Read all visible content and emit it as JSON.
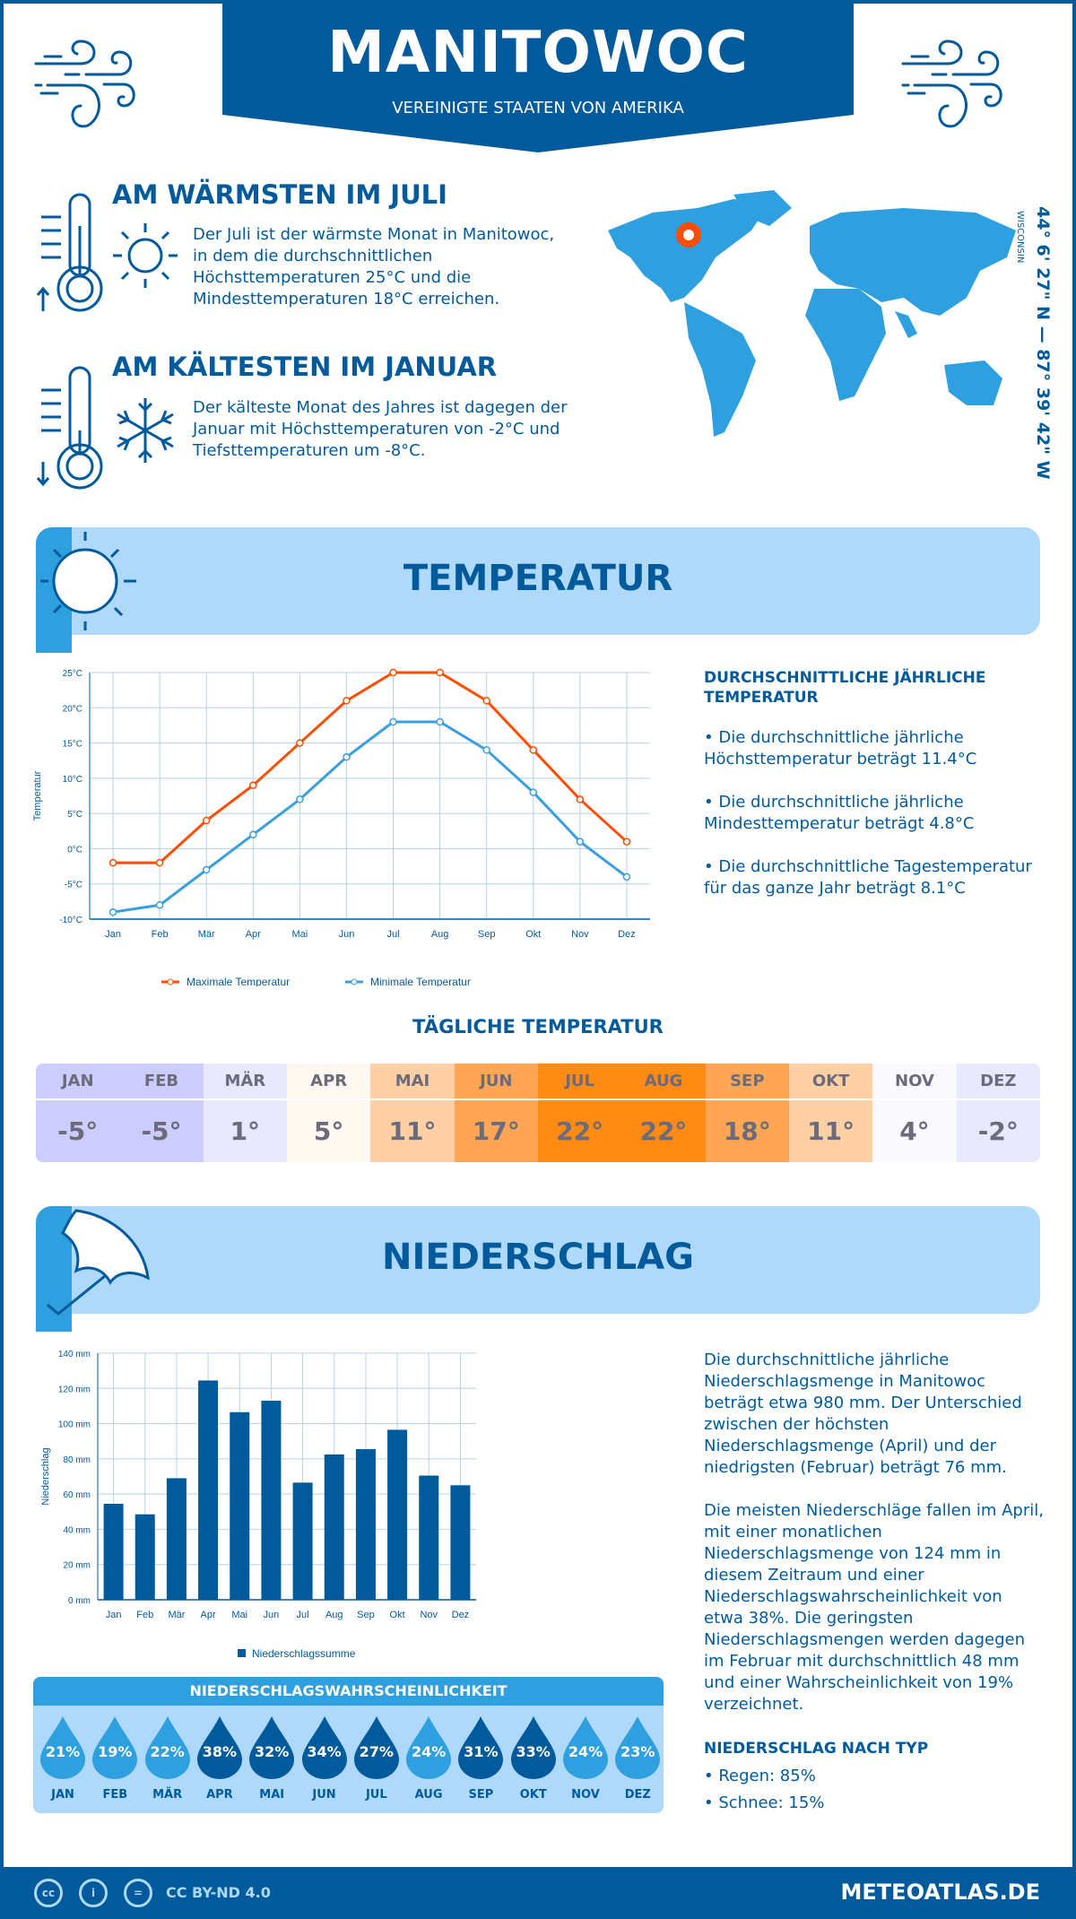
{
  "header": {
    "title": "MANITOWOC",
    "subtitle": "VEREINIGTE STAATEN VON AMERIKA"
  },
  "warm": {
    "heading": "AM WÄRMSTEN IM JULI",
    "text": "Der Juli ist der wärmste Monat in Manitowoc, in dem die durchschnittlichen Höchsttemperaturen 25°C und die Mindesttemperaturen 18°C erreichen."
  },
  "cold": {
    "heading": "AM KÄLTESTEN IM JANUAR",
    "text": "Der kälteste Monat des Jahres ist dagegen der Januar mit Höchsttemperaturen von -2°C und Tiefsttemperaturen um -8°C."
  },
  "location": {
    "coords": "44° 6' 27\" N — 87° 39' 42\" W",
    "region": "WISCONSIN"
  },
  "temp_section": {
    "title": "TEMPERATUR",
    "right_heading": "DURCHSCHNITTLICHE JÄHRLICHE TEMPERATUR",
    "bullets": [
      "• Die durchschnittliche jährliche Höchsttemperatur beträgt 11.4°C",
      "• Die durchschnittliche jährliche Mindesttemperatur beträgt 4.8°C",
      "• Die durchschnittliche Tagestemperatur für das ganze Jahr beträgt 8.1°C"
    ]
  },
  "daily": {
    "heading": "TÄGLICHE TEMPERATUR",
    "months": [
      "JAN",
      "FEB",
      "MÄR",
      "APR",
      "MAI",
      "JUN",
      "JUL",
      "AUG",
      "SEP",
      "OKT",
      "NOV",
      "DEZ"
    ],
    "values": [
      "-5°",
      "-5°",
      "1°",
      "5°",
      "11°",
      "17°",
      "22°",
      "22°",
      "18°",
      "11°",
      "4°",
      "-2°"
    ],
    "colors": [
      "#cccdfe",
      "#cccdfe",
      "#e8e8fe",
      "#fff8f1",
      "#ffd0a4",
      "#ffa655",
      "#ff8a14",
      "#ff8a14",
      "#ffa655",
      "#ffd0a4",
      "#f9f9fe",
      "#e8e8fe"
    ]
  },
  "precip_section": {
    "title": "NIEDERSCHLAG",
    "text1": "Die durchschnittliche jährliche Niederschlagsmenge in Manitowoc beträgt etwa 980 mm. Der Unterschied zwischen der höchsten Niederschlagsmenge (April) und der niedrigsten (Februar) beträgt 76 mm.",
    "text2": "Die meisten Niederschläge fallen im April, mit einer monatlichen Niederschlagsmenge von 124 mm in diesem Zeitraum und einer Niederschlagswahrscheinlichkeit von etwa 38%. Die geringsten Niederschlagsmengen werden dagegen im Februar mit durchschnittlich 48 mm und einer Wahrscheinlichkeit von 19% verzeichnet.",
    "type_heading": "NIEDERSCHLAG NACH TYP",
    "types": [
      "• Regen: 85%",
      "• Schnee: 15%"
    ]
  },
  "probability": {
    "heading": "NIEDERSCHLAGSWAHRSCHEINLICHKEIT",
    "months": [
      "JAN",
      "FEB",
      "MÄR",
      "APR",
      "MAI",
      "JUN",
      "JUL",
      "AUG",
      "SEP",
      "OKT",
      "NOV",
      "DEZ"
    ],
    "values": [
      "21%",
      "19%",
      "22%",
      "38%",
      "32%",
      "34%",
      "27%",
      "24%",
      "31%",
      "33%",
      "24%",
      "23%"
    ],
    "dark_color": "#005a9c",
    "light_color": "#2e9fdf"
  },
  "footer": {
    "license": "CC BY-ND 4.0",
    "site": "METEOATLAS.DE"
  },
  "chart_data": [
    {
      "type": "line",
      "categories": [
        "Jan",
        "Feb",
        "Mär",
        "Apr",
        "Mai",
        "Jun",
        "Jul",
        "Aug",
        "Sep",
        "Okt",
        "Nov",
        "Dez"
      ],
      "ylabel": "Temperatur",
      "ylim": [
        -10,
        25
      ],
      "yticks": [
        "-10°C",
        "-5°C",
        "0°C",
        "5°C",
        "10°C",
        "15°C",
        "20°C",
        "25°C"
      ],
      "grid": true,
      "legend": "bottom",
      "series": [
        {
          "name": "Maximale Temperatur",
          "color": "#ff4e00",
          "values": [
            -2,
            -2,
            4,
            9,
            15,
            21,
            25,
            25,
            21,
            14,
            7,
            1
          ]
        },
        {
          "name": "Minimale Temperatur",
          "color": "#3a9fe0",
          "values": [
            -9,
            -8,
            -3,
            2,
            7,
            13,
            18,
            18,
            14,
            8,
            1,
            -4
          ]
        }
      ]
    },
    {
      "type": "bar",
      "categories": [
        "Jan",
        "Feb",
        "Mär",
        "Apr",
        "Mai",
        "Jun",
        "Jul",
        "Aug",
        "Sep",
        "Okt",
        "Nov",
        "Dez"
      ],
      "ylabel": "Niederschlag",
      "ylim": [
        0,
        140
      ],
      "yticks": [
        "0 mm",
        "20 mm",
        "40 mm",
        "60 mm",
        "80 mm",
        "100 mm",
        "120 mm",
        "140 mm"
      ],
      "grid": true,
      "legend": "bottom",
      "series": [
        {
          "name": "Niederschlagssumme",
          "color": "#005a9c",
          "values": [
            54.5,
            48.5,
            69,
            124.5,
            106.5,
            113,
            66.5,
            82.5,
            85.5,
            96.5,
            70.5,
            65
          ]
        }
      ]
    }
  ]
}
